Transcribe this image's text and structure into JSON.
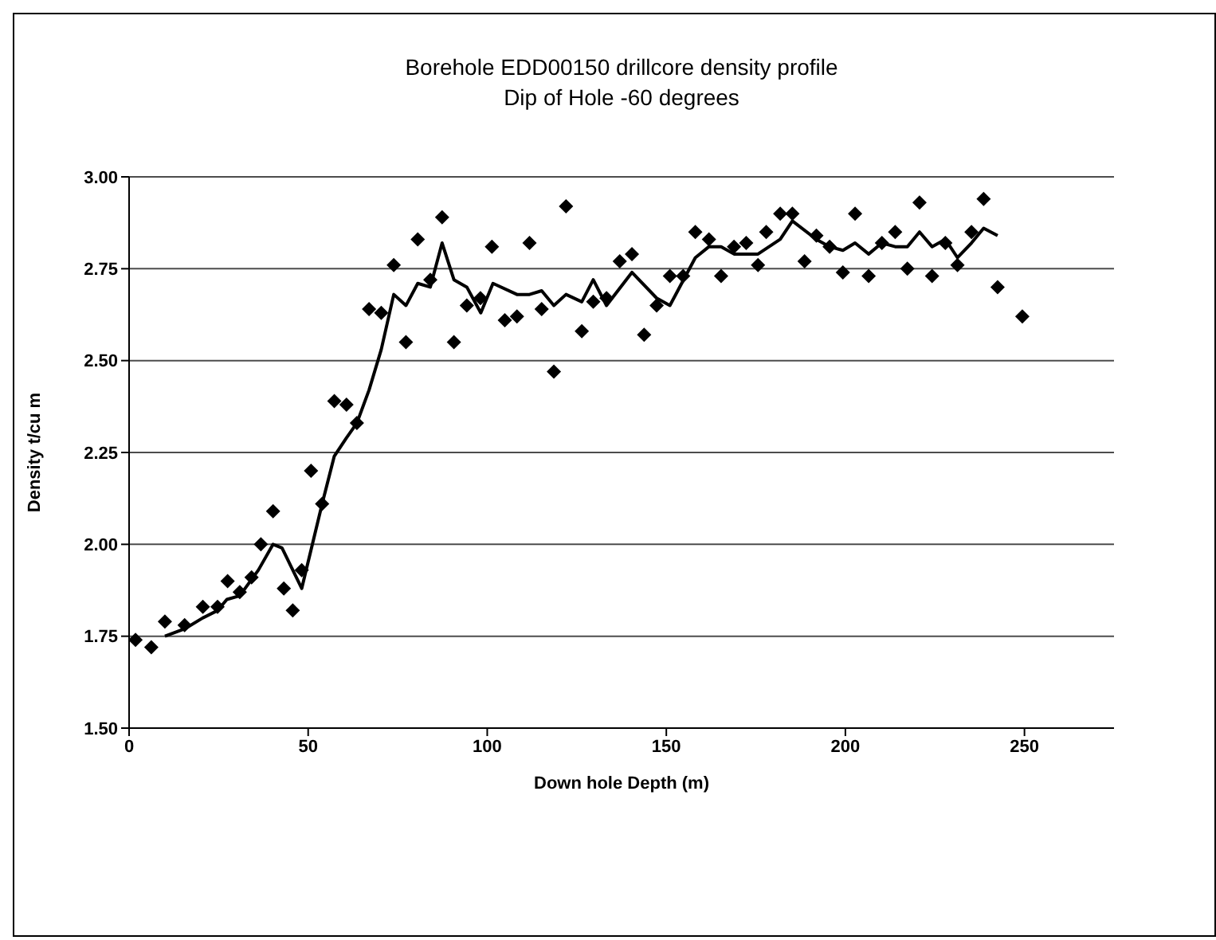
{
  "chart_data": {
    "type": "scatter",
    "title": "Borehole EDD00150 drillcore density profile",
    "subtitle": "Dip of Hole -60 degrees",
    "xlabel": "Down hole Depth (m)",
    "ylabel": "Density t/cu m",
    "xlim": [
      0,
      275
    ],
    "xticks": [
      0,
      50,
      100,
      150,
      200,
      250
    ],
    "ylim": [
      1.5,
      3
    ],
    "yticks": [
      {
        "value": 1.5,
        "label": "1.50"
      },
      {
        "value": 1.75,
        "label": "1.75"
      },
      {
        "value": 2,
        "label": "2.00"
      },
      {
        "value": 2.25,
        "label": "2.25"
      },
      {
        "value": 2.5,
        "label": "2.50"
      },
      {
        "value": 2.75,
        "label": "2.75"
      },
      {
        "value": 3,
        "label": "3.00"
      }
    ],
    "grid": "y",
    "legend": false,
    "series": [
      {
        "marker": "diamond",
        "color": "#000000",
        "x": [
          1.8,
          6.2,
          10,
          15.5,
          20.6,
          24.7,
          27.5,
          30.9,
          34.2,
          36.8,
          40.2,
          43.2,
          45.7,
          48.2,
          50.8,
          53.9,
          57.3,
          60.7,
          63.6,
          67,
          70.4,
          73.9,
          77.3,
          80.6,
          84.1,
          87.4,
          90.7,
          94.3,
          98.1,
          101.3,
          104.9,
          108.3,
          111.8,
          115.2,
          118.6,
          122,
          126.4,
          129.6,
          133.3,
          137,
          140.4,
          143.8,
          147.3,
          151,
          154.7,
          158.1,
          161.9,
          165.3,
          168.9,
          172.3,
          175.6,
          177.9,
          181.8,
          185.2,
          188.6,
          191.9,
          195.6,
          199.3,
          202.7,
          206.5,
          210.2,
          213.9,
          217.3,
          220.7,
          224.2,
          227.9,
          231.3,
          235.2,
          238.6,
          242.5,
          249.4
        ],
        "values": [
          1.74,
          1.72,
          1.79,
          1.78,
          1.83,
          1.83,
          1.9,
          1.87,
          1.91,
          2,
          2.09,
          1.88,
          1.82,
          1.93,
          2.2,
          2.11,
          2.39,
          2.38,
          2.33,
          2.64,
          2.63,
          2.76,
          2.55,
          2.83,
          2.72,
          2.89,
          2.55,
          2.65,
          2.67,
          2.81,
          2.61,
          2.62,
          2.82,
          2.64,
          2.47,
          2.92,
          2.58,
          2.66,
          2.67,
          2.77,
          2.79,
          2.57,
          2.65,
          2.73,
          2.73,
          2.85,
          2.83,
          2.73,
          2.81,
          2.82,
          2.76,
          2.85,
          2.9,
          2.9,
          2.77,
          2.84,
          2.81,
          2.74,
          2.9,
          2.73,
          2.82,
          2.85,
          2.75,
          2.93,
          2.73,
          2.82,
          2.76,
          2.85,
          2.94,
          2.7,
          2.62
        ]
      },
      {
        "type": "line",
        "marker": "none",
        "color": "#000000",
        "x": [
          10,
          15.5,
          20.6,
          24.7,
          27.3,
          30.9,
          36.1,
          40.2,
          42.7,
          48.2,
          53.9,
          57.3,
          60.7,
          63.6,
          67,
          70.4,
          73.9,
          77.3,
          80.6,
          84.1,
          87.4,
          90.7,
          94.3,
          98.2,
          101.6,
          108.3,
          111.8,
          115.2,
          118.6,
          122,
          126.4,
          129.6,
          133.3,
          140.4,
          147.3,
          151,
          158.1,
          161.9,
          165.3,
          168.9,
          172.3,
          175.6,
          181.8,
          185.2,
          191.9,
          195.6,
          199.3,
          202.7,
          206.5,
          210.2,
          213.9,
          217.3,
          220.7,
          224.2,
          227.9,
          231.3,
          235.2,
          238.6,
          242.5
        ],
        "values": [
          1.75,
          1.77,
          1.8,
          1.82,
          1.85,
          1.86,
          1.93,
          2,
          1.99,
          1.88,
          2.11,
          2.24,
          2.29,
          2.33,
          2.42,
          2.53,
          2.68,
          2.65,
          2.71,
          2.7,
          2.82,
          2.72,
          2.7,
          2.63,
          2.71,
          2.68,
          2.68,
          2.69,
          2.65,
          2.68,
          2.66,
          2.72,
          2.65,
          2.74,
          2.67,
          2.65,
          2.78,
          2.81,
          2.81,
          2.79,
          2.79,
          2.79,
          2.83,
          2.88,
          2.83,
          2.81,
          2.8,
          2.82,
          2.79,
          2.82,
          2.81,
          2.81,
          2.85,
          2.81,
          2.83,
          2.78,
          2.82,
          2.86,
          2.84
        ]
      }
    ]
  }
}
